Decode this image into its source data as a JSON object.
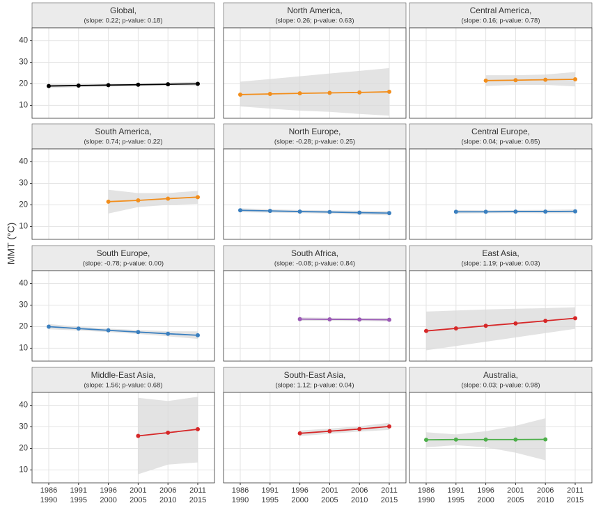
{
  "chart_data": {
    "type": "line",
    "ylabel": "MMT (°C)",
    "categories": [
      [
        "1986",
        "1990"
      ],
      [
        "1991",
        "1995"
      ],
      [
        "1996",
        "2000"
      ],
      [
        "2001",
        "2005"
      ],
      [
        "2006",
        "2010"
      ],
      [
        "2011",
        "2015"
      ]
    ],
    "ylim": [
      4,
      46
    ],
    "yticks": [
      10,
      20,
      30,
      40
    ],
    "grid": true,
    "panels": [
      {
        "title": "Global,",
        "subtitle": "(slope: 0.22; p-value: 0.18)",
        "color": "#000000",
        "values": [
          19.0,
          19.2,
          19.4,
          19.6,
          19.8,
          20.0
        ],
        "lower": [
          18.0,
          18.5,
          18.8,
          19.0,
          19.1,
          19.0
        ],
        "upper": [
          20.0,
          19.9,
          20.0,
          20.2,
          20.5,
          21.0
        ]
      },
      {
        "title": "North America,",
        "subtitle": "(slope: 0.26; p-value: 0.63)",
        "color": "#f28e1c",
        "values": [
          15.0,
          15.3,
          15.6,
          15.8,
          16.0,
          16.3
        ],
        "lower": [
          9.5,
          8.5,
          7.5,
          7.0,
          6.0,
          5.2
        ],
        "upper": [
          21.0,
          22.2,
          23.5,
          24.8,
          26.0,
          27.3
        ]
      },
      {
        "title": "Central America,",
        "subtitle": "(slope: 0.16; p-value: 0.78)",
        "color": "#f28e1c",
        "values": [
          null,
          null,
          21.5,
          21.7,
          21.9,
          22.1
        ],
        "lower": [
          null,
          null,
          19.0,
          19.5,
          19.5,
          18.8
        ],
        "upper": [
          null,
          null,
          24.0,
          24.0,
          24.3,
          25.5
        ]
      },
      {
        "title": "South America,",
        "subtitle": "(slope: 0.74; p-value: 0.22)",
        "color": "#f28e1c",
        "values": [
          null,
          null,
          21.5,
          22.1,
          22.9,
          23.6
        ],
        "lower": [
          null,
          null,
          16.0,
          19.0,
          20.0,
          20.5
        ],
        "upper": [
          null,
          null,
          27.0,
          25.5,
          25.5,
          26.5
        ]
      },
      {
        "title": "North Europe,",
        "subtitle": "(slope: -0.28; p-value: 0.25)",
        "color": "#3a7fbf",
        "values": [
          17.5,
          17.2,
          16.9,
          16.7,
          16.4,
          16.2
        ],
        "lower": [
          16.6,
          16.4,
          16.2,
          15.9,
          15.5,
          15.2
        ],
        "upper": [
          18.4,
          18.0,
          17.6,
          17.4,
          17.3,
          17.2
        ]
      },
      {
        "title": "Central Europe,",
        "subtitle": "(slope: 0.04; p-value: 0.85)",
        "color": "#3a7fbf",
        "values": [
          null,
          16.8,
          16.8,
          16.9,
          16.9,
          17.0
        ],
        "lower": [
          null,
          16.0,
          16.1,
          16.2,
          16.1,
          16.1
        ],
        "upper": [
          null,
          17.6,
          17.5,
          17.6,
          17.7,
          17.9
        ]
      },
      {
        "title": "South Europe,",
        "subtitle": "(slope: -0.78; p-value: 0.00)",
        "color": "#3a7fbf",
        "values": [
          20.0,
          19.1,
          18.3,
          17.5,
          16.7,
          16.0
        ],
        "lower": [
          18.8,
          18.2,
          17.5,
          16.6,
          15.5,
          14.3
        ],
        "upper": [
          21.2,
          20.0,
          19.1,
          18.4,
          17.9,
          17.8
        ]
      },
      {
        "title": "South Africa,",
        "subtitle": "(slope: -0.08; p-value: 0.84)",
        "color": "#9b59b6",
        "values": [
          null,
          null,
          23.5,
          23.4,
          23.3,
          23.2
        ],
        "lower": [
          null,
          null,
          22.7,
          22.7,
          22.6,
          22.4
        ],
        "upper": [
          null,
          null,
          24.3,
          24.1,
          24.0,
          24.0
        ]
      },
      {
        "title": "East Asia,",
        "subtitle": "(slope: 1.19; p-value: 0.03)",
        "color": "#d62728",
        "values": [
          18.0,
          19.2,
          20.4,
          21.5,
          22.7,
          23.9
        ],
        "lower": [
          9.0,
          11.0,
          13.0,
          15.0,
          17.0,
          19.0
        ],
        "upper": [
          27.0,
          27.5,
          28.0,
          28.3,
          28.6,
          29.0
        ]
      },
      {
        "title": "Middle-East Asia,",
        "subtitle": "(slope: 1.56; p-value: 0.68)",
        "color": "#d62728",
        "values": [
          null,
          null,
          null,
          25.8,
          27.3,
          28.9
        ],
        "lower": [
          null,
          null,
          null,
          8.0,
          12.5,
          13.5
        ],
        "upper": [
          null,
          null,
          null,
          43.5,
          42.0,
          44.0
        ]
      },
      {
        "title": "South-East Asia,",
        "subtitle": "(slope: 1.12; p-value: 0.04)",
        "color": "#d62728",
        "values": [
          null,
          null,
          27.0,
          28.0,
          29.0,
          30.2
        ],
        "lower": [
          null,
          null,
          25.7,
          26.8,
          27.8,
          28.6
        ],
        "upper": [
          null,
          null,
          28.3,
          29.2,
          30.3,
          31.9
        ]
      },
      {
        "title": "Australia,",
        "subtitle": "(slope: 0.03; p-value: 0.98)",
        "color": "#4daf4a",
        "values": [
          24.0,
          24.1,
          24.1,
          24.1,
          24.2,
          null
        ],
        "lower": [
          20.5,
          21.5,
          20.5,
          18.0,
          14.5,
          null
        ],
        "upper": [
          27.5,
          26.5,
          28.0,
          30.5,
          34.0,
          null
        ]
      }
    ]
  }
}
